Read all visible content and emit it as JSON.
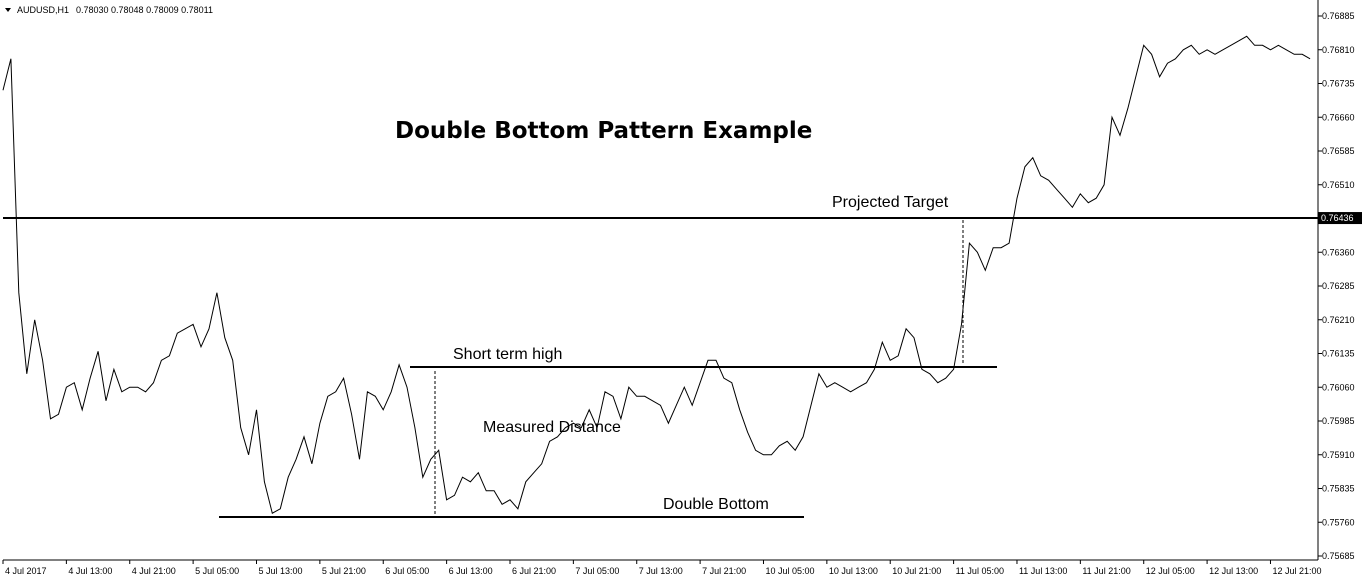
{
  "header": {
    "symbol": "AUDUSD,H1",
    "ohlc": "0.78030 0.78048 0.78009 0.78011"
  },
  "colors": {
    "background": "#ffffff",
    "line": "#000000",
    "axis": "#000000",
    "price_label_bg": "#000000",
    "price_label_text": "#ffffff"
  },
  "chart_data": {
    "type": "line",
    "title": "Double Bottom Pattern Example",
    "xlabel": "",
    "ylabel": "",
    "grid": false,
    "legend": "none",
    "ylim": [
      0.75685,
      0.76885
    ],
    "y_ticks": [
      "0.76885",
      "0.76810",
      "0.76735",
      "0.76660",
      "0.76585",
      "0.76510",
      "0.76436",
      "0.76360",
      "0.76285",
      "0.76210",
      "0.76135",
      "0.76060",
      "0.75985",
      "0.75910",
      "0.75835",
      "0.75760",
      "0.75685"
    ],
    "x_ticks": [
      "4 Jul 2017",
      "4 Jul 13:00",
      "4 Jul 21:00",
      "5 Jul 05:00",
      "5 Jul 13:00",
      "5 Jul 21:00",
      "6 Jul 05:00",
      "6 Jul 13:00",
      "6 Jul 21:00",
      "7 Jul 05:00",
      "7 Jul 13:00",
      "7 Jul 21:00",
      "10 Jul 05:00",
      "10 Jul 13:00",
      "10 Jul 21:00",
      "11 Jul 05:00",
      "11 Jul 13:00",
      "11 Jul 21:00",
      "12 Jul 05:00",
      "12 Jul 13:00",
      "12 Jul 21:00"
    ],
    "x_tick_positions": [
      0,
      8,
      16,
      24,
      32,
      40,
      48,
      56,
      64,
      72,
      80,
      88,
      96,
      104,
      112,
      120,
      128,
      136,
      144,
      152,
      160
    ],
    "bar_count": 166,
    "series": [
      {
        "x": [
          0,
          1,
          2,
          3,
          4,
          5,
          6,
          7,
          8,
          9,
          10,
          11,
          12,
          13,
          14,
          15,
          16,
          17,
          18,
          19,
          20,
          21,
          22,
          23,
          24,
          25,
          26,
          27,
          28,
          29,
          30,
          31,
          32,
          33,
          34,
          35,
          36,
          37,
          38,
          39,
          40,
          41,
          42,
          43,
          44,
          45,
          46,
          47,
          48,
          49,
          50,
          51,
          52,
          53,
          54,
          55,
          56,
          57,
          58,
          59,
          60,
          61,
          62,
          63,
          64,
          65,
          66,
          67,
          68,
          69,
          70,
          71,
          72,
          73,
          74,
          75,
          76,
          77,
          78,
          79,
          80,
          81,
          82,
          83,
          84,
          85,
          86,
          87,
          88,
          89,
          90,
          91,
          92,
          93,
          94,
          95,
          96,
          97,
          98,
          99,
          100,
          101,
          102,
          103,
          104,
          105,
          106,
          107,
          108,
          109,
          110,
          111,
          112,
          113,
          114,
          115,
          116,
          117,
          118,
          119,
          120,
          121,
          122,
          123,
          124,
          125,
          126,
          127,
          128,
          129,
          130,
          131,
          132,
          133,
          134,
          135,
          136,
          137,
          138,
          139,
          140,
          141,
          142,
          143,
          144,
          145,
          146,
          147,
          148,
          149,
          150,
          151,
          152,
          153,
          154,
          155,
          156,
          157,
          158,
          159,
          160,
          161,
          162,
          163,
          164,
          165
        ],
        "values": [
          0.7672,
          0.7679,
          0.7627,
          0.7609,
          0.7621,
          0.7612,
          0.7599,
          0.76,
          0.7606,
          0.7607,
          0.7601,
          0.7608,
          0.7614,
          0.7603,
          0.761,
          0.7605,
          0.7606,
          0.7606,
          0.7605,
          0.7607,
          0.7612,
          0.7613,
          0.7618,
          0.7619,
          0.762,
          0.7615,
          0.7619,
          0.7627,
          0.7617,
          0.7612,
          0.7597,
          0.7591,
          0.7601,
          0.7585,
          0.7578,
          0.7579,
          0.7586,
          0.759,
          0.7595,
          0.7589,
          0.7598,
          0.7604,
          0.7605,
          0.7608,
          0.76,
          0.759,
          0.7605,
          0.7604,
          0.7601,
          0.7605,
          0.7611,
          0.7606,
          0.7597,
          0.7586,
          0.759,
          0.7592,
          0.7581,
          0.7582,
          0.7586,
          0.7585,
          0.7587,
          0.7583,
          0.7583,
          0.758,
          0.7581,
          0.7579,
          0.7585,
          0.7587,
          0.7589,
          0.7594,
          0.7595,
          0.7597,
          0.7598,
          0.7597,
          0.7601,
          0.7597,
          0.7605,
          0.7604,
          0.7599,
          0.7606,
          0.7604,
          0.7604,
          0.7603,
          0.7602,
          0.7598,
          0.7602,
          0.7606,
          0.7602,
          0.7607,
          0.7612,
          0.7612,
          0.7608,
          0.7607,
          0.7601,
          0.7596,
          0.7592,
          0.7591,
          0.7591,
          0.7593,
          0.7594,
          0.7592,
          0.7595,
          0.7602,
          0.7609,
          0.7606,
          0.7607,
          0.7606,
          0.7605,
          0.7606,
          0.7607,
          0.761,
          0.7616,
          0.7612,
          0.7613,
          0.7619,
          0.7617,
          0.761,
          0.7609,
          0.7607,
          0.7608,
          0.761,
          0.762,
          0.7638,
          0.7636,
          0.7632,
          0.7637,
          0.7637,
          0.7638,
          0.7648,
          0.7655,
          0.7657,
          0.7653,
          0.7652,
          0.765,
          0.7648,
          0.7646,
          0.7649,
          0.7647,
          0.7648,
          0.7651,
          0.7666,
          0.7662,
          0.7668,
          0.7675,
          0.7682,
          0.768,
          0.7675,
          0.7678,
          0.7679,
          0.7681,
          0.7682,
          0.768,
          0.7681,
          0.768,
          0.7681,
          0.7682,
          0.7683,
          0.7684,
          0.7682,
          0.7682,
          0.7681,
          0.7682,
          0.7681,
          0.768,
          0.768,
          0.7679
        ]
      }
    ],
    "hlines": [
      {
        "value": 0.76436,
        "label": "0.76436"
      }
    ],
    "annotations": [
      {
        "name": "title",
        "text": "Double Bottom Pattern Example"
      },
      {
        "name": "projected-target",
        "text": "Projected Target"
      },
      {
        "name": "short-term-high",
        "text": "Short term high"
      },
      {
        "name": "measured-distance",
        "text": "Measured Distance"
      },
      {
        "name": "double-bottom",
        "text": "Double Bottom"
      }
    ]
  }
}
